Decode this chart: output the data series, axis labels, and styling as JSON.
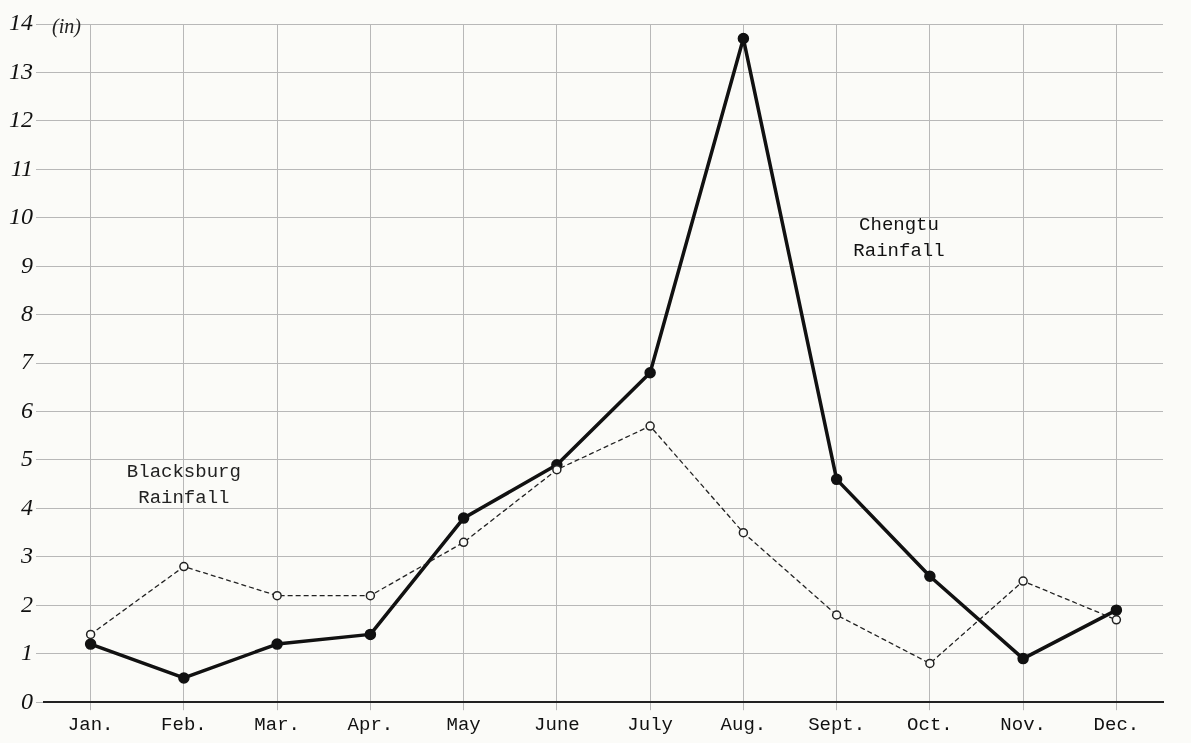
{
  "chart_data": {
    "type": "line",
    "ylabel": "(in)",
    "categories": [
      "Jan.",
      "Feb.",
      "Mar.",
      "Apr.",
      "May",
      "June",
      "July",
      "Aug.",
      "Sept.",
      "Oct.",
      "Nov.",
      "Dec."
    ],
    "series": [
      {
        "name": "Chengtu Rainfall",
        "color": "#111111",
        "line_style": "solid",
        "marker": "circle",
        "values": [
          1.2,
          0.5,
          1.2,
          1.4,
          3.8,
          4.9,
          6.8,
          13.7,
          4.6,
          2.6,
          0.9,
          1.9
        ]
      },
      {
        "name": "Blacksburg Rainfall",
        "color": "#222222",
        "line_style": "dashed",
        "marker": "circle",
        "values": [
          1.4,
          2.8,
          2.2,
          2.2,
          3.3,
          4.8,
          5.7,
          3.5,
          1.8,
          0.8,
          2.5,
          1.7
        ]
      }
    ],
    "ylim": [
      0,
      14
    ],
    "yticks": [
      0,
      1,
      2,
      3,
      4,
      5,
      6,
      7,
      8,
      9,
      10,
      11,
      12,
      13,
      14
    ],
    "grid": true,
    "legend": false
  }
}
